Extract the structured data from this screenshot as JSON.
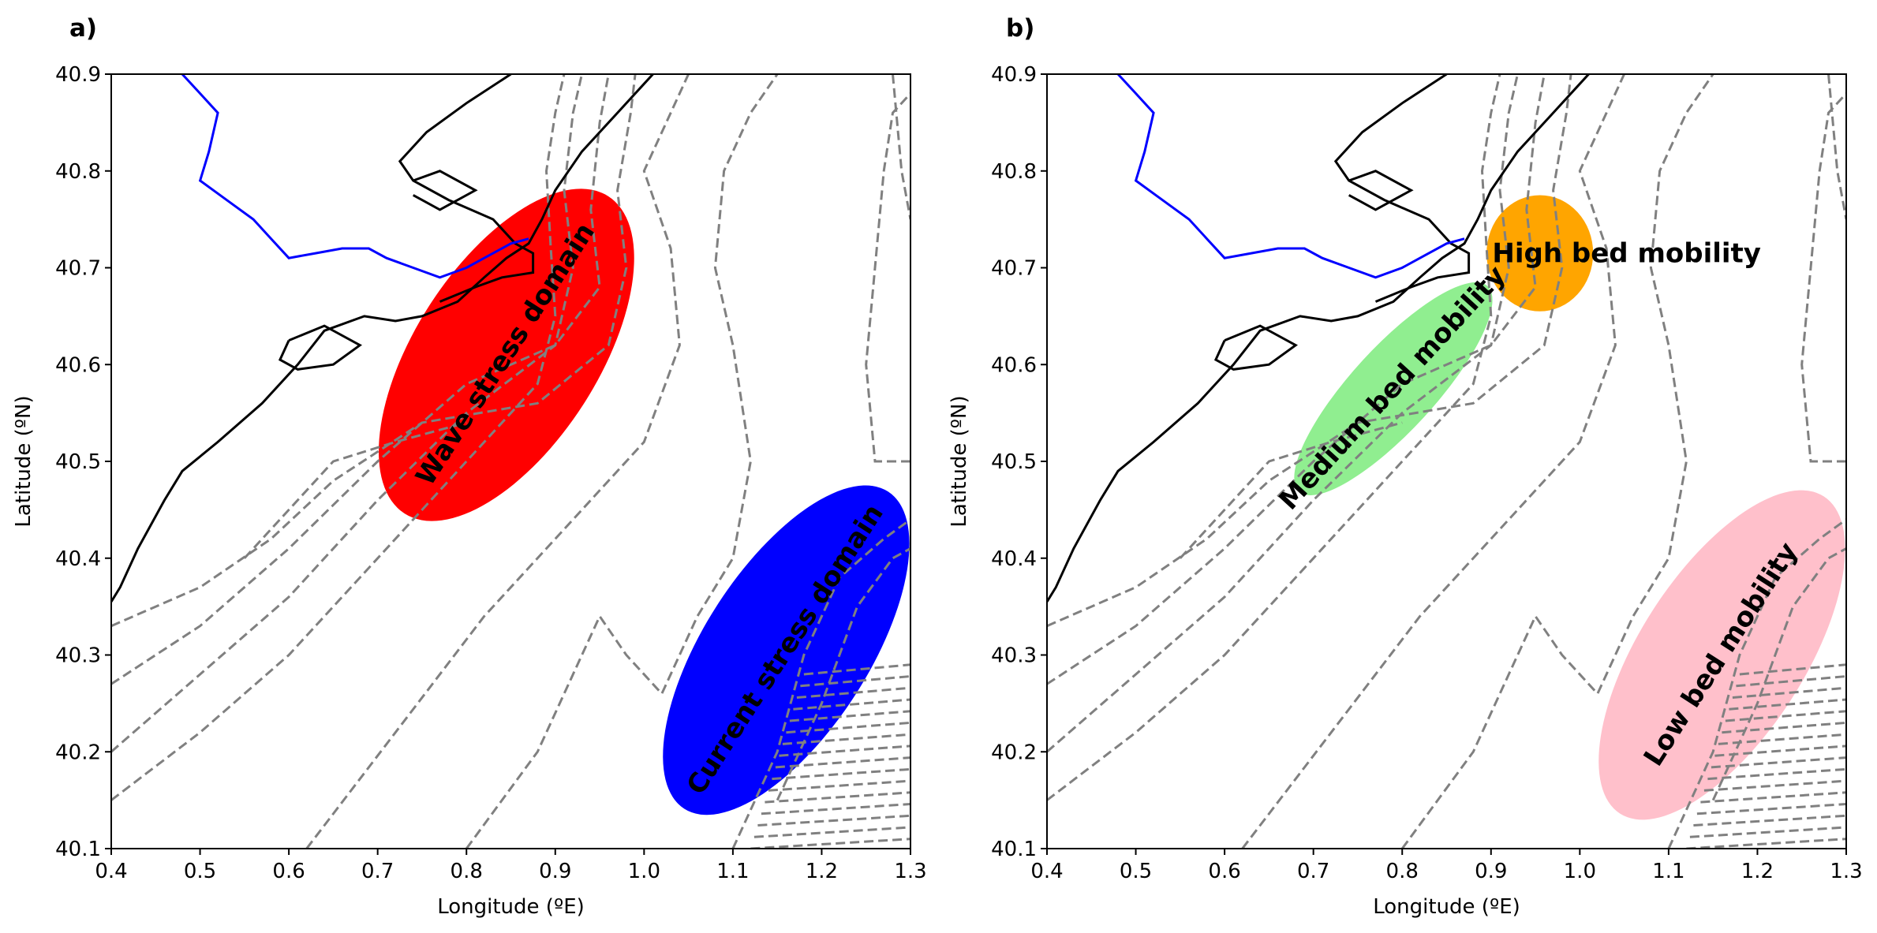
{
  "chart_data": [
    {
      "panel": "a)",
      "type": "map",
      "xlabel": "Longitude (ºE)",
      "ylabel": "Latitude (ºN)",
      "xlim": [
        0.4,
        1.3
      ],
      "ylim": [
        40.1,
        40.9
      ],
      "xticks": [
        "0.4",
        "0.5",
        "0.6",
        "0.7",
        "0.8",
        "0.9",
        "1.0",
        "1.1",
        "1.2",
        "1.3"
      ],
      "yticks": [
        "40.1",
        "40.2",
        "40.3",
        "40.4",
        "40.5",
        "40.6",
        "40.7",
        "40.8",
        "40.9"
      ],
      "domains": [
        {
          "label": "Wave stress domain",
          "color": "#ff0000",
          "center": [
            0.845,
            40.61
          ],
          "semi_major": 0.2,
          "semi_minor": 0.1,
          "angle": 55
        },
        {
          "label": "Current stress domain",
          "color": "#0000ff",
          "center": [
            1.16,
            40.305
          ],
          "semi_major": 0.2,
          "semi_minor": 0.09,
          "angle": 55
        }
      ]
    },
    {
      "panel": "b)",
      "type": "map",
      "xlabel": "Longitude (ºE)",
      "ylabel": "Latitude (ºN)",
      "xlim": [
        0.4,
        1.3
      ],
      "ylim": [
        40.1,
        40.9
      ],
      "xticks": [
        "0.4",
        "0.5",
        "0.6",
        "0.7",
        "0.8",
        "0.9",
        "1.0",
        "1.1",
        "1.2",
        "1.3"
      ],
      "yticks": [
        "40.1",
        "40.2",
        "40.3",
        "40.4",
        "40.5",
        "40.6",
        "40.7",
        "40.8",
        "40.9"
      ],
      "domains": [
        {
          "label": "High bed mobility",
          "color": "#ffa500",
          "center": [
            0.955,
            40.715
          ],
          "semi_major": 0.06,
          "semi_minor": 0.06,
          "angle": 0
        },
        {
          "label": "Medium bed mobility",
          "color": "#90ee90",
          "center": [
            0.79,
            40.575
          ],
          "semi_major": 0.15,
          "semi_minor": 0.045,
          "angle": 45
        },
        {
          "label": "Low bed mobility",
          "color": "#ffc0cb",
          "center": [
            1.16,
            40.3
          ],
          "semi_major": 0.2,
          "semi_minor": 0.09,
          "angle": 55
        }
      ]
    }
  ],
  "style": {
    "coastline_color": "#000000",
    "river_color": "#0000ff",
    "isobath_color": "#808080"
  }
}
